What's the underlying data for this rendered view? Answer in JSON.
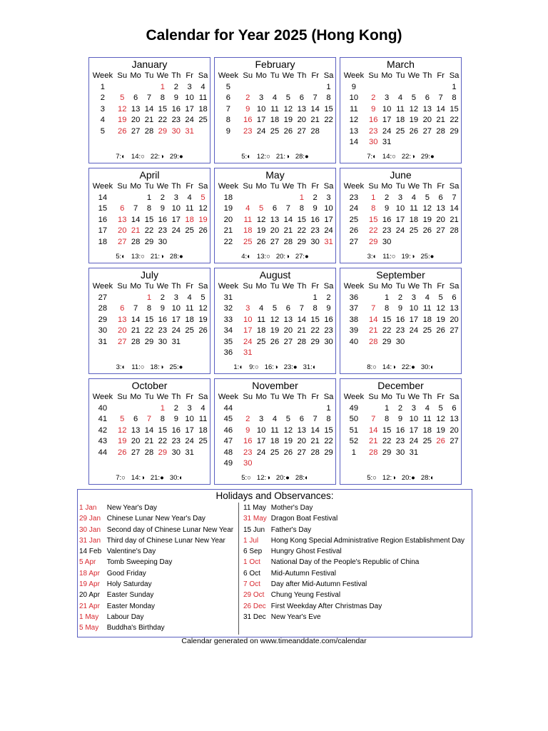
{
  "title": "Calendar for Year 2025 (Hong Kong)",
  "year": 2025,
  "colors": {
    "holiday": "#d8282f",
    "border": "#5a5fc0"
  },
  "weekday_headers": [
    "Week",
    "Su",
    "Mo",
    "Tu",
    "We",
    "Th",
    "Fr",
    "Sa"
  ],
  "months": [
    {
      "name": "January",
      "weeks": [
        1,
        2,
        3,
        4,
        5
      ],
      "red_days": [
        1,
        29,
        30,
        31
      ],
      "moons": [
        "7:◐",
        "14:○",
        "22:◑",
        "29:●"
      ]
    },
    {
      "name": "February",
      "weeks": [
        5,
        6,
        7,
        8,
        9
      ],
      "red_days": [],
      "moons": [
        "5:◐",
        "12:○",
        "21:◑",
        "28:●"
      ]
    },
    {
      "name": "March",
      "weeks": [
        9,
        10,
        11,
        12,
        13,
        14
      ],
      "red_days": [],
      "moons": [
        "7:◐",
        "14:○",
        "22:◑",
        "29:●"
      ]
    },
    {
      "name": "April",
      "weeks": [
        14,
        15,
        16,
        17,
        18
      ],
      "red_days": [
        5,
        18,
        19,
        21
      ],
      "moons": [
        "5:◐",
        "13:○",
        "21:◑",
        "28:●"
      ]
    },
    {
      "name": "May",
      "weeks": [
        18,
        19,
        20,
        21,
        22
      ],
      "red_days": [
        1,
        5,
        31
      ],
      "moons": [
        "4:◐",
        "13:○",
        "20:◑",
        "27:●"
      ]
    },
    {
      "name": "June",
      "weeks": [
        23,
        24,
        25,
        26,
        27
      ],
      "red_days": [],
      "moons": [
        "3:◐",
        "11:○",
        "19:◑",
        "25:●"
      ]
    },
    {
      "name": "July",
      "weeks": [
        27,
        28,
        29,
        30,
        31
      ],
      "red_days": [
        1
      ],
      "moons": [
        "3:◐",
        "11:○",
        "18:◑",
        "25:●"
      ]
    },
    {
      "name": "August",
      "weeks": [
        31,
        32,
        33,
        34,
        35,
        36
      ],
      "red_days": [],
      "moons": [
        "1:◐",
        "9:○",
        "16:◑",
        "23:●",
        "31:◐"
      ]
    },
    {
      "name": "September",
      "weeks": [
        36,
        37,
        38,
        39,
        40
      ],
      "red_days": [],
      "moons": [
        "8:○",
        "14:◑",
        "22:●",
        "30:◐"
      ]
    },
    {
      "name": "October",
      "weeks": [
        40,
        41,
        42,
        43,
        44
      ],
      "red_days": [
        1,
        7,
        29
      ],
      "moons": [
        "7:○",
        "14:◑",
        "21:●",
        "30:◐"
      ]
    },
    {
      "name": "November",
      "weeks": [
        44,
        45,
        46,
        47,
        48,
        49
      ],
      "red_days": [],
      "moons": [
        "5:○",
        "12:◑",
        "20:●",
        "28:◐"
      ]
    },
    {
      "name": "December",
      "weeks": [
        49,
        50,
        51,
        52,
        1
      ],
      "red_days": [
        26
      ],
      "moons": [
        "5:○",
        "12:◑",
        "20:●",
        "28:◐"
      ]
    }
  ],
  "holidays_title": "Holidays and Observances:",
  "holidays_left": [
    {
      "date": "1 Jan",
      "name": "New Year's Day",
      "red": true
    },
    {
      "date": "29 Jan",
      "name": "Chinese Lunar New Year's Day",
      "red": true
    },
    {
      "date": "30 Jan",
      "name": "Second day of Chinese Lunar New Year",
      "red": true
    },
    {
      "date": "31 Jan",
      "name": "Third day of Chinese Lunar New Year",
      "red": true
    },
    {
      "date": "14 Feb",
      "name": "Valentine's Day",
      "red": false
    },
    {
      "date": "5 Apr",
      "name": "Tomb Sweeping Day",
      "red": true
    },
    {
      "date": "18 Apr",
      "name": "Good Friday",
      "red": true
    },
    {
      "date": "19 Apr",
      "name": "Holy Saturday",
      "red": true
    },
    {
      "date": "20 Apr",
      "name": "Easter Sunday",
      "red": false
    },
    {
      "date": "21 Apr",
      "name": "Easter Monday",
      "red": true
    },
    {
      "date": "1 May",
      "name": "Labour Day",
      "red": true
    },
    {
      "date": "5 May",
      "name": "Buddha's Birthday",
      "red": true
    }
  ],
  "holidays_right": [
    {
      "date": "11 May",
      "name": "Mother's Day",
      "red": false
    },
    {
      "date": "31 May",
      "name": "Dragon Boat Festival",
      "red": true
    },
    {
      "date": "15 Jun",
      "name": "Father's Day",
      "red": false
    },
    {
      "date": "1 Jul",
      "name": "Hong Kong Special Administrative Region Establishment Day",
      "red": true
    },
    {
      "date": "6 Sep",
      "name": "Hungry Ghost Festival",
      "red": false
    },
    {
      "date": "1 Oct",
      "name": "National Day of the People's Republic of China",
      "red": true
    },
    {
      "date": "6 Oct",
      "name": "Mid-Autumn Festival",
      "red": false
    },
    {
      "date": "7 Oct",
      "name": "Day after Mid-Autumn Festival",
      "red": true
    },
    {
      "date": "29 Oct",
      "name": "Chung Yeung Festival",
      "red": true
    },
    {
      "date": "26 Dec",
      "name": "First Weekday After Christmas Day",
      "red": true
    },
    {
      "date": "31 Dec",
      "name": "New Year's Eve",
      "red": false
    }
  ],
  "footer": "Calendar generated on www.timeanddate.com/calendar"
}
